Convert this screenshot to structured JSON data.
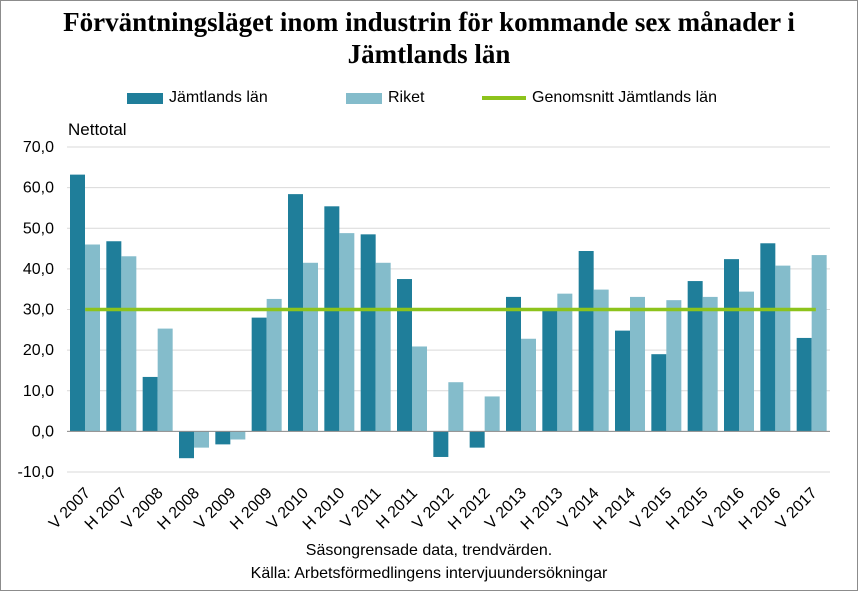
{
  "chart_data": {
    "type": "bar",
    "title": "Förväntningsläget inom industrin för kommande sex månader i Jämtlands län",
    "ylabel": "Nettotal",
    "xlabel": "",
    "ylim": [
      -10,
      70
    ],
    "yticks": [
      70,
      60,
      50,
      40,
      30,
      20,
      10,
      0,
      -10
    ],
    "ytick_labels": [
      "70,0",
      "60,0",
      "50,0",
      "40,0",
      "30,0",
      "20,0",
      "10,0",
      "0,0",
      "-10,0"
    ],
    "categories": [
      "V 2007",
      "H 2007",
      "V 2008",
      "H 2008",
      "V 2009",
      "H 2009",
      "V 2010",
      "H 2010",
      "V 2011",
      "H 2011",
      "V 2012",
      "H 2012",
      "V 2013",
      "H 2013",
      "V 2014",
      "H 2014",
      "V 2015",
      "H 2015",
      "V 2016",
      "H 2016",
      "V 2017"
    ],
    "series": [
      {
        "name": "Jämtlands län",
        "color": "#1f7e9a",
        "values": [
          63.2,
          46.8,
          13.4,
          -6.6,
          -3.2,
          28.0,
          58.4,
          55.4,
          48.5,
          37.5,
          -6.3,
          -4.0,
          33.1,
          30.0,
          44.4,
          24.8,
          19.0,
          37.0,
          42.4,
          46.3,
          23.0
        ]
      },
      {
        "name": "Riket",
        "color": "#84bccb",
        "values": [
          46.0,
          43.1,
          25.3,
          -4.0,
          -2.0,
          32.6,
          41.5,
          48.8,
          41.5,
          20.9,
          12.1,
          8.6,
          22.8,
          33.9,
          34.9,
          33.1,
          32.3,
          33.1,
          34.4,
          40.8,
          43.4
        ]
      }
    ],
    "average_line": {
      "name": "Genomsnitt Jämtlands län",
      "value": 30.0,
      "color": "#8dc31c"
    },
    "legend": [
      "Jämtlands län",
      "Riket",
      "Genomsnitt Jämtlands län"
    ],
    "legend_position": "top",
    "grid": true
  },
  "footer": {
    "line1": "Säsongrensade data, trendvärden.",
    "line2": "Källa: Arbetsförmedlingens  intervjuundersökningar"
  }
}
